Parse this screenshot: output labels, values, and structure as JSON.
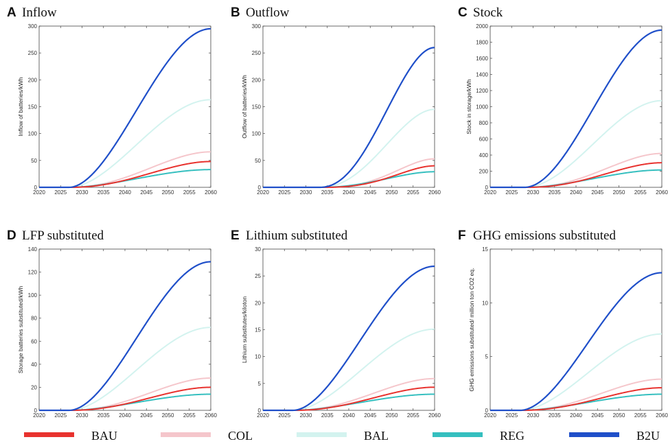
{
  "colors": {
    "BAU": "#e8322e",
    "COL": "#f5c6cb",
    "BAL": "#d3f3ef",
    "REG": "#35bfbf",
    "B2U": "#1f4fc9"
  },
  "legend": [
    {
      "key": "BAU",
      "label": "BAU"
    },
    {
      "key": "COL",
      "label": "COL"
    },
    {
      "key": "BAL",
      "label": "BAL"
    },
    {
      "key": "REG",
      "label": "REG"
    },
    {
      "key": "B2U",
      "label": "B2U"
    }
  ],
  "chart_data": [
    {
      "type": "line",
      "letter": "A",
      "title": "Inflow",
      "xlabel": "",
      "ylabel": "Inflow of batteries/kWh",
      "xlim": [
        2020,
        2060
      ],
      "ylim": [
        0,
        300
      ],
      "xticks": [
        2020,
        2025,
        2030,
        2035,
        2040,
        2045,
        2050,
        2055,
        2060
      ],
      "yticks": [
        0,
        50,
        100,
        150,
        200,
        250,
        300
      ],
      "start": 2027,
      "series": [
        {
          "name": "B2U",
          "final": 295,
          "mid": 2043
        },
        {
          "name": "BAL",
          "final": 163,
          "mid": 2043
        },
        {
          "name": "COL",
          "final": 66,
          "mid": 2045
        },
        {
          "name": "BAU",
          "final": 48,
          "mid": 2045
        },
        {
          "name": "REG",
          "final": 33,
          "mid": 2043
        }
      ]
    },
    {
      "type": "line",
      "letter": "B",
      "title": "Outflow",
      "xlabel": "",
      "ylabel": "Outflow of batteries/kWh",
      "xlim": [
        2020,
        2060
      ],
      "ylim": [
        0,
        300
      ],
      "xticks": [
        2020,
        2025,
        2030,
        2035,
        2040,
        2045,
        2050,
        2055,
        2060
      ],
      "yticks": [
        0,
        50,
        100,
        150,
        200,
        250,
        300
      ],
      "start": 2033,
      "series": [
        {
          "name": "B2U",
          "final": 260,
          "mid": 2048
        },
        {
          "name": "BAL",
          "final": 145,
          "mid": 2048
        },
        {
          "name": "COL",
          "final": 53,
          "mid": 2050
        },
        {
          "name": "BAU",
          "final": 40,
          "mid": 2050
        },
        {
          "name": "REG",
          "final": 29,
          "mid": 2048
        }
      ]
    },
    {
      "type": "line",
      "letter": "C",
      "title": "Stock",
      "xlabel": "",
      "ylabel": "Stock in storage/kWh",
      "xlim": [
        2020,
        2060
      ],
      "ylim": [
        0,
        2000
      ],
      "xticks": [
        2020,
        2025,
        2030,
        2035,
        2040,
        2045,
        2050,
        2055,
        2060
      ],
      "yticks": [
        0,
        200,
        400,
        600,
        800,
        1000,
        1200,
        1400,
        1600,
        1800,
        2000
      ],
      "start": 2028,
      "series": [
        {
          "name": "B2U",
          "final": 1950,
          "mid": 2044
        },
        {
          "name": "BAL",
          "final": 1075,
          "mid": 2044
        },
        {
          "name": "COL",
          "final": 420,
          "mid": 2046
        },
        {
          "name": "BAU",
          "final": 305,
          "mid": 2046
        },
        {
          "name": "REG",
          "final": 215,
          "mid": 2044
        }
      ]
    },
    {
      "type": "line",
      "letter": "D",
      "title": "LFP substituted",
      "xlabel": "",
      "ylabel": "Storage batteries substituted/kWh",
      "xlim": [
        2020,
        2060
      ],
      "ylim": [
        0,
        140
      ],
      "xticks": [
        2020,
        2025,
        2030,
        2035,
        2040,
        2045,
        2050,
        2055,
        2060
      ],
      "yticks": [
        0,
        20,
        40,
        60,
        80,
        100,
        120,
        140
      ],
      "start": 2027,
      "series": [
        {
          "name": "B2U",
          "final": 129,
          "mid": 2043
        },
        {
          "name": "BAL",
          "final": 72,
          "mid": 2043
        },
        {
          "name": "COL",
          "final": 28,
          "mid": 2045
        },
        {
          "name": "BAU",
          "final": 20,
          "mid": 2045
        },
        {
          "name": "REG",
          "final": 14,
          "mid": 2043
        }
      ]
    },
    {
      "type": "line",
      "letter": "E",
      "title": "Lithium substituted",
      "xlabel": "",
      "ylabel": "Lithium substitutes/kiloton",
      "xlim": [
        2020,
        2060
      ],
      "ylim": [
        0,
        30
      ],
      "xticks": [
        2020,
        2025,
        2030,
        2035,
        2040,
        2045,
        2050,
        2055,
        2060
      ],
      "yticks": [
        0,
        5,
        10,
        15,
        20,
        25,
        30
      ],
      "start": 2027,
      "series": [
        {
          "name": "B2U",
          "final": 26.8,
          "mid": 2043
        },
        {
          "name": "BAL",
          "final": 15.1,
          "mid": 2043
        },
        {
          "name": "COL",
          "final": 5.9,
          "mid": 2045
        },
        {
          "name": "BAU",
          "final": 4.3,
          "mid": 2045
        },
        {
          "name": "REG",
          "final": 3.0,
          "mid": 2043
        }
      ]
    },
    {
      "type": "line",
      "letter": "F",
      "title": "GHG emissions substituted",
      "xlabel": "",
      "ylabel": "GHG emissions substituted/ million ton CO2 eq.",
      "xlim": [
        2020,
        2060
      ],
      "ylim": [
        0,
        15
      ],
      "xticks": [
        2020,
        2025,
        2030,
        2035,
        2040,
        2045,
        2050,
        2055,
        2060
      ],
      "yticks": [
        0,
        5,
        10,
        15
      ],
      "start": 2027,
      "series": [
        {
          "name": "B2U",
          "final": 12.8,
          "mid": 2043
        },
        {
          "name": "BAL",
          "final": 7.1,
          "mid": 2043
        },
        {
          "name": "COL",
          "final": 2.9,
          "mid": 2045
        },
        {
          "name": "BAU",
          "final": 2.1,
          "mid": 2045
        },
        {
          "name": "REG",
          "final": 1.5,
          "mid": 2043
        }
      ]
    }
  ]
}
